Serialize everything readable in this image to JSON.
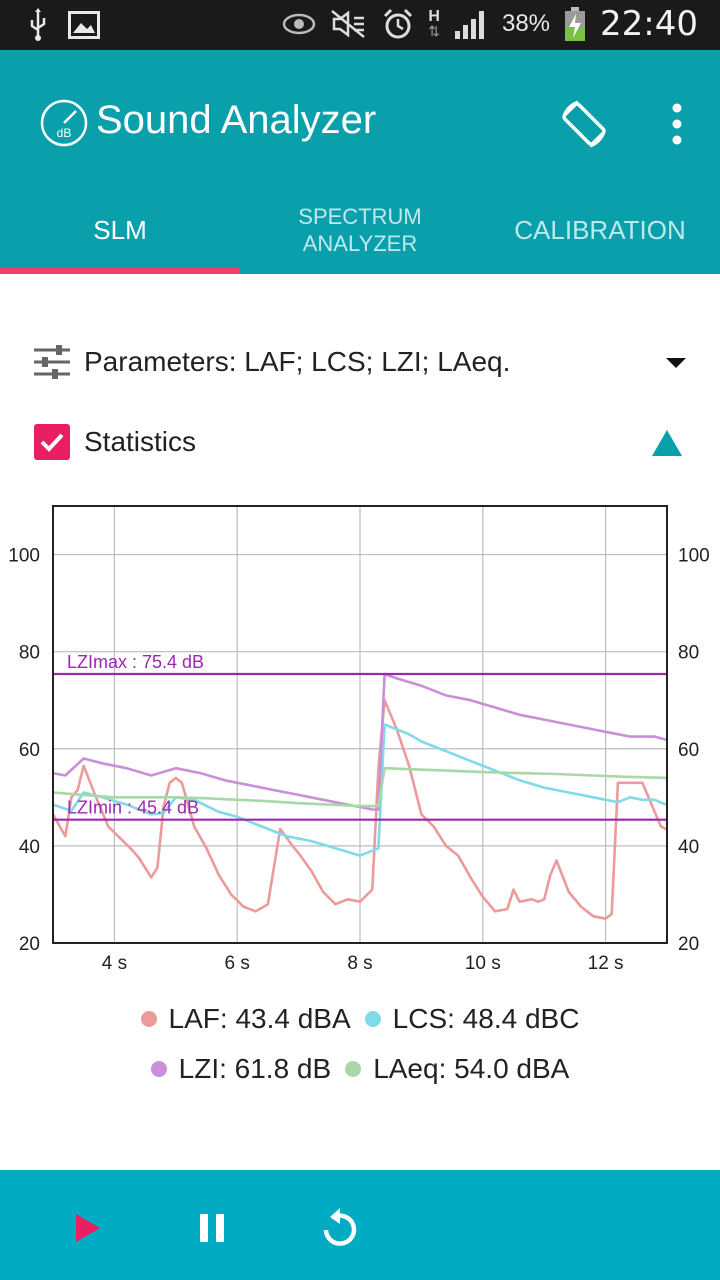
{
  "status_bar": {
    "time": "22:40",
    "battery": "38%",
    "network": "H",
    "icons": [
      "usb-icon",
      "image-icon",
      "eye-icon",
      "mute-icon",
      "alarm-icon",
      "network-h-icon",
      "signal-icon",
      "battery-icon"
    ]
  },
  "app": {
    "title": "Sound Analyzer",
    "colors": {
      "appbar": "#0aa0ab",
      "accent": "#e91e63",
      "bottom_bar": "#00abc3"
    }
  },
  "tabs": [
    {
      "label": "SLM",
      "active": true
    },
    {
      "label": "SPECTRUM\nANALYZER",
      "active": false
    },
    {
      "label": "CALIBRATION",
      "active": false
    }
  ],
  "parameters": {
    "label": "Parameters: LAF; LCS; LZI; LAeq."
  },
  "statistics": {
    "label": "Statistics",
    "checked": true
  },
  "chart_data": {
    "type": "line",
    "xlim": [
      3.0,
      13.0
    ],
    "ylim": [
      20,
      110
    ],
    "x_ticks": [
      4,
      6,
      8,
      10,
      12
    ],
    "x_tick_labels": [
      "4 s",
      "6 s",
      "8 s",
      "10 s",
      "12 s"
    ],
    "y_ticks": [
      20,
      40,
      60,
      80,
      100
    ],
    "y_tick_labels": [
      "20",
      "40",
      "60",
      "80",
      "100"
    ],
    "grid": true,
    "legend": "bottom",
    "annotations": [
      {
        "label": "LZImax : 75.4 dB",
        "y": 75.4,
        "color": "#9c27b0"
      },
      {
        "label": "LZImin : 45.4 dB",
        "y": 45.4,
        "color": "#9c27b0"
      }
    ],
    "series": [
      {
        "name": "LAF",
        "color": "#ec9a9a",
        "x": [
          3.0,
          3.2,
          3.3,
          3.4,
          3.5,
          3.7,
          3.9,
          4.1,
          4.3,
          4.4,
          4.6,
          4.7,
          4.8,
          4.9,
          5.0,
          5.1,
          5.3,
          5.5,
          5.7,
          5.9,
          6.1,
          6.3,
          6.5,
          6.7,
          6.9,
          7.0,
          7.2,
          7.4,
          7.6,
          7.8,
          8.0,
          8.2,
          8.3,
          8.4,
          8.6,
          8.8,
          9.0,
          9.2,
          9.4,
          9.6,
          9.8,
          10.0,
          10.2,
          10.4,
          10.5,
          10.6,
          10.8,
          10.9,
          11.0,
          11.1,
          11.2,
          11.4,
          11.6,
          11.8,
          12.0,
          12.1,
          12.2,
          12.4,
          12.6,
          12.8,
          12.9,
          13.0
        ],
        "y": [
          46.5,
          42,
          50,
          51.5,
          56.5,
          50,
          44,
          41.5,
          39,
          37.5,
          33.5,
          35.5,
          48,
          53,
          54,
          53,
          44,
          39.5,
          34,
          30,
          27.5,
          26.5,
          28,
          43.5,
          40,
          38.5,
          35,
          30.5,
          28,
          29,
          28.5,
          31,
          56,
          70,
          64,
          56.5,
          46.5,
          44,
          40,
          38,
          33.5,
          29.5,
          26.5,
          27,
          31,
          28.5,
          29,
          28.5,
          29,
          34,
          37,
          30.5,
          27.5,
          25.5,
          25,
          26,
          53,
          53,
          53,
          47,
          44,
          43.4
        ]
      },
      {
        "name": "LCS",
        "color": "#7fdbe8",
        "x": [
          3.0,
          3.3,
          3.5,
          3.8,
          4.2,
          4.6,
          4.8,
          5.0,
          5.3,
          5.7,
          6.0,
          6.4,
          6.8,
          7.2,
          7.6,
          8.0,
          8.3,
          8.4,
          8.6,
          8.8,
          9.0,
          9.4,
          9.8,
          10.2,
          10.6,
          11.0,
          11.4,
          11.8,
          12.0,
          12.2,
          12.4,
          12.6,
          12.8,
          13.0
        ],
        "y": [
          48.5,
          47.2,
          51,
          50,
          48.5,
          46.5,
          46.8,
          50,
          49.5,
          47,
          46,
          44,
          42,
          41,
          39.5,
          38,
          39.5,
          65,
          64,
          63,
          61.5,
          59.5,
          57.5,
          55.5,
          53.5,
          52,
          51,
          50,
          49.5,
          49,
          50,
          49.5,
          49.5,
          48.4
        ]
      },
      {
        "name": "LZI",
        "color": "#c98fd8",
        "x": [
          3.0,
          3.2,
          3.5,
          3.8,
          4.2,
          4.6,
          5.0,
          5.4,
          5.8,
          6.2,
          6.6,
          7.0,
          7.4,
          7.8,
          8.2,
          8.3,
          8.4,
          8.6,
          9.0,
          9.4,
          9.8,
          10.2,
          10.6,
          11.0,
          11.4,
          11.8,
          12.0,
          12.2,
          12.4,
          12.6,
          12.8,
          13.0
        ],
        "y": [
          55,
          54.5,
          58,
          57,
          56,
          54.5,
          56,
          55,
          53.5,
          52.5,
          51.5,
          50.5,
          49.5,
          48.5,
          47.5,
          47.5,
          75.4,
          74.5,
          73,
          71,
          70,
          68.5,
          67,
          66,
          65,
          64,
          63.5,
          63,
          62.5,
          62.5,
          62.5,
          61.8
        ]
      },
      {
        "name": "LAeq",
        "color": "#a8d8a8",
        "x": [
          3.0,
          3.5,
          4.0,
          4.5,
          5.0,
          5.5,
          6.0,
          6.5,
          7.0,
          7.5,
          8.0,
          8.3,
          8.4,
          8.8,
          9.4,
          10.0,
          10.6,
          11.2,
          11.8,
          12.4,
          13.0
        ],
        "y": [
          51,
          50.5,
          50,
          50,
          50,
          49.8,
          49.5,
          49.2,
          48.8,
          48.5,
          48.2,
          48.2,
          56,
          55.8,
          55.5,
          55.2,
          55,
          54.8,
          54.5,
          54.2,
          54.0
        ]
      }
    ],
    "legend_entries": [
      {
        "label": "LAF: 43.4 dBA",
        "color": "#ec9a9a"
      },
      {
        "label": "LCS: 48.4 dBC",
        "color": "#7fdbe8"
      },
      {
        "label": "LZI: 61.8 dB",
        "color": "#c98fd8"
      },
      {
        "label": "LAeq: 54.0 dBA",
        "color": "#a8d8a8"
      }
    ]
  },
  "controls": {
    "icons": [
      "play-icon",
      "pause-icon",
      "reset-icon"
    ],
    "play_color": "#e91e63"
  }
}
